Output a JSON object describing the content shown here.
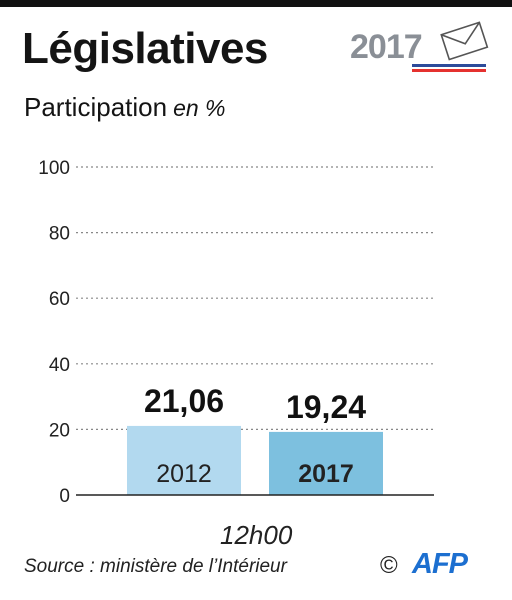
{
  "header": {
    "title": "Législatives",
    "subtitle": "Participation",
    "unit": "en %",
    "logo_year": "2017"
  },
  "colors": {
    "bar_2012": "#b2d9ef",
    "bar_2017": "#7dc0df",
    "logo_red": "#e5312f",
    "logo_blue": "#2d4b9a",
    "afp_blue": "#1c6fd0"
  },
  "chart_data": {
    "type": "bar",
    "categories": [
      "2012",
      "2017"
    ],
    "values": [
      21.06,
      19.24
    ],
    "value_labels": [
      "21,06",
      "19,24"
    ],
    "ylim": [
      0,
      100
    ],
    "yticks": [
      0,
      20,
      40,
      60,
      80,
      100
    ],
    "xlabel": "12h00",
    "grid": true,
    "highlight_category": "2017"
  },
  "footer": {
    "source": "Source : ministère de l’Intérieur",
    "copyright": "©",
    "agency": "AFP"
  }
}
